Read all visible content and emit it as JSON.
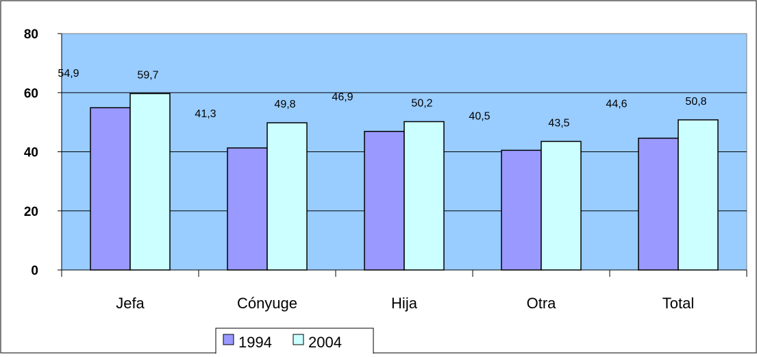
{
  "chart_data": {
    "type": "bar",
    "categories": [
      "Jefa",
      "Cónyuge",
      "Hija",
      "Otra",
      "Total"
    ],
    "series": [
      {
        "name": "1994",
        "values": [
          54.9,
          41.3,
          46.9,
          40.5,
          44.6
        ],
        "labels": [
          "54,9",
          "41,3",
          "46,9",
          "40,5",
          "44,6"
        ]
      },
      {
        "name": "2004",
        "values": [
          59.7,
          49.8,
          50.2,
          43.5,
          50.8
        ],
        "labels": [
          "59,7",
          "49,8",
          "50,2",
          "43,5",
          "50,8"
        ]
      }
    ],
    "title": "",
    "xlabel": "",
    "ylabel": "",
    "ylim": [
      0,
      80
    ],
    "yticks": [
      0,
      20,
      40,
      60,
      80
    ],
    "grid": true,
    "legend": "bottom-center",
    "colors": {
      "plot_bg": "#99CCFF",
      "series_1994": "#9999FF",
      "series_2004": "#CCFFFF",
      "gridline": "#000000"
    }
  }
}
